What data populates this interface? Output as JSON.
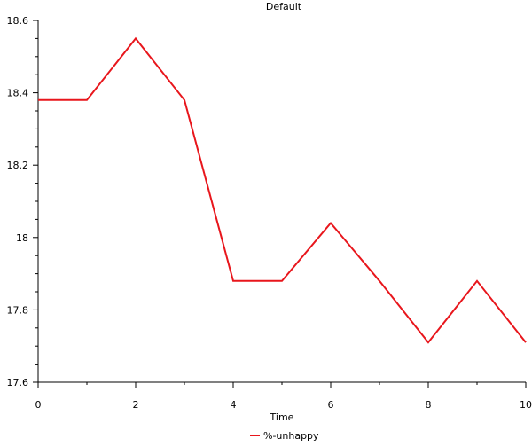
{
  "chart_data": {
    "type": "line",
    "title": "Default",
    "xlabel": "Time",
    "ylabel": "",
    "xlim": [
      0,
      10
    ],
    "ylim": [
      17.6,
      18.6
    ],
    "x_ticks": [
      0,
      2,
      4,
      6,
      8,
      10
    ],
    "x_tick_labels": [
      "0",
      "2",
      "4",
      "6",
      "8",
      "10"
    ],
    "y_ticks": [
      17.6,
      17.8,
      18.0,
      18.2,
      18.4,
      18.6
    ],
    "y_tick_labels": [
      "17.6",
      "17.8",
      "18",
      "18.2",
      "18.4",
      "18.6"
    ],
    "grid": false,
    "legend_position": "bottom-center",
    "series": [
      {
        "name": "%-unhappy",
        "color": "#e8161c",
        "x": [
          0,
          1,
          2,
          3,
          4,
          5,
          6,
          7,
          8,
          9,
          10
        ],
        "values": [
          18.38,
          18.38,
          18.55,
          18.38,
          17.88,
          17.88,
          18.04,
          17.88,
          17.71,
          17.88,
          17.71
        ]
      }
    ]
  }
}
